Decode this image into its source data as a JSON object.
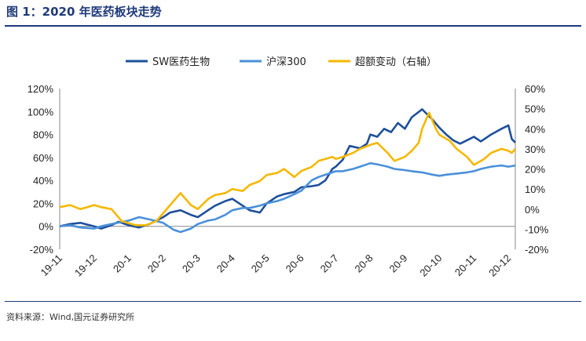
{
  "figure": {
    "title": "图 1：2020 年医药板块走势",
    "source": "资料来源：Wind,国元证券研究所"
  },
  "colors": {
    "title": "#1f3b7a",
    "sw_pharma": "#1e4f9c",
    "hs300": "#4a90d9",
    "excess": "#f5b800"
  },
  "chart_data": {
    "type": "line",
    "title": "",
    "grid": false,
    "legend_position": "top-center",
    "x_tick_labels": [
      "19-11",
      "19-12",
      "20-1",
      "20-2",
      "20-3",
      "20-4",
      "20-5",
      "20-6",
      "20-7",
      "20-8",
      "20-9",
      "20-10",
      "20-11",
      "20-12"
    ],
    "x_range": [
      0,
      13.2
    ],
    "y_left": {
      "range": [
        -20,
        120
      ],
      "ticks": [
        -20,
        0,
        20,
        40,
        60,
        80,
        100,
        120
      ],
      "tick_labels": [
        "-20%",
        "0%",
        "20%",
        "40%",
        "60%",
        "80%",
        "100%",
        "120%"
      ]
    },
    "y_right": {
      "range": [
        -20,
        60
      ],
      "ticks": [
        -20,
        -10,
        0,
        10,
        20,
        30,
        40,
        50,
        60
      ],
      "tick_labels": [
        "-20%",
        "-10%",
        "0%",
        "10%",
        "20%",
        "30%",
        "40%",
        "50%",
        "60%"
      ]
    },
    "series": [
      {
        "name": "SW医药生物",
        "axis": "left",
        "x": [
          0,
          0.3,
          0.6,
          1.0,
          1.2,
          1.5,
          1.7,
          2.0,
          2.3,
          2.6,
          3.0,
          3.2,
          3.5,
          3.8,
          4.0,
          4.3,
          4.5,
          4.8,
          5.0,
          5.2,
          5.5,
          5.8,
          6.0,
          6.3,
          6.5,
          6.8,
          7.0,
          7.3,
          7.5,
          7.7,
          7.9,
          8.0,
          8.2,
          8.4,
          8.7,
          8.9,
          9.0,
          9.2,
          9.4,
          9.6,
          9.8,
          10.0,
          10.2,
          10.5,
          10.8,
          11.0,
          11.2,
          11.4,
          11.6,
          11.8,
          12.0,
          12.2,
          12.5,
          12.8,
          13.0,
          13.1,
          13.2
        ],
        "values": [
          0,
          2,
          3,
          0,
          -2,
          1,
          4,
          1,
          -1,
          2,
          8,
          12,
          14,
          10,
          8,
          14,
          18,
          22,
          24,
          20,
          14,
          12,
          20,
          26,
          28,
          30,
          34,
          35,
          36,
          40,
          50,
          52,
          58,
          70,
          68,
          72,
          80,
          78,
          85,
          82,
          90,
          85,
          95,
          102,
          93,
          86,
          80,
          75,
          72,
          75,
          78,
          74,
          80,
          85,
          88,
          76,
          73
        ]
      },
      {
        "name": "沪深300",
        "axis": "left",
        "x": [
          0,
          0.3,
          0.6,
          1.0,
          1.2,
          1.5,
          2.0,
          2.3,
          2.6,
          3.0,
          3.3,
          3.5,
          3.8,
          4.0,
          4.3,
          4.5,
          4.8,
          5.0,
          5.3,
          5.5,
          5.8,
          6.0,
          6.3,
          6.5,
          6.8,
          7.0,
          7.3,
          7.5,
          7.8,
          8.0,
          8.2,
          8.5,
          8.7,
          9.0,
          9.2,
          9.5,
          9.7,
          10.0,
          10.2,
          10.5,
          10.8,
          11.0,
          11.2,
          11.5,
          11.8,
          12.0,
          12.2,
          12.5,
          12.8,
          13.0,
          13.2
        ],
        "values": [
          0,
          1,
          -1,
          -2,
          0,
          2,
          5,
          8,
          6,
          3,
          -3,
          -5,
          -2,
          2,
          5,
          6,
          10,
          14,
          16,
          16,
          18,
          20,
          22,
          24,
          28,
          31,
          40,
          43,
          46,
          48,
          48,
          50,
          52,
          55,
          54,
          52,
          50,
          49,
          48,
          47,
          45,
          44,
          45,
          46,
          47,
          48,
          50,
          52,
          53,
          52,
          53
        ]
      },
      {
        "name": "超额变动（右轴）",
        "axis": "right",
        "x": [
          0,
          0.3,
          0.6,
          1.0,
          1.2,
          1.5,
          1.8,
          2.0,
          2.2,
          2.5,
          2.8,
          3.0,
          3.3,
          3.5,
          3.8,
          4.0,
          4.3,
          4.5,
          4.8,
          5.0,
          5.3,
          5.5,
          5.8,
          6.0,
          6.3,
          6.5,
          6.8,
          7.0,
          7.3,
          7.5,
          7.7,
          7.9,
          8.0,
          8.2,
          8.5,
          8.7,
          9.0,
          9.2,
          9.5,
          9.7,
          10.0,
          10.2,
          10.4,
          10.5,
          10.7,
          10.9,
          11.0,
          11.3,
          11.5,
          11.8,
          12.0,
          12.3,
          12.5,
          12.8,
          13.0,
          13.1,
          13.2
        ],
        "values": [
          1,
          2,
          0,
          2,
          1,
          0,
          -6,
          -7,
          -8,
          -8,
          -6,
          -2,
          4,
          8,
          2,
          0,
          5,
          7,
          8,
          10,
          9,
          12,
          14,
          17,
          18,
          20,
          16,
          19,
          21,
          24,
          25,
          26,
          25,
          26,
          28,
          30,
          32,
          33,
          28,
          24,
          26,
          29,
          33,
          40,
          48,
          40,
          37,
          34,
          30,
          26,
          22,
          25,
          28,
          30,
          29,
          28,
          30
        ]
      }
    ]
  }
}
